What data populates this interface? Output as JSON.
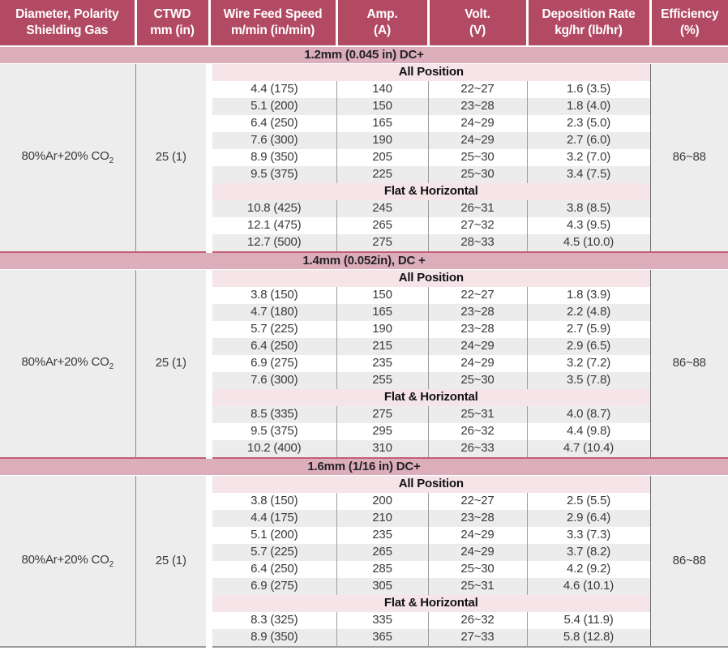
{
  "colors": {
    "header_bg": "#b34a63",
    "header_text": "#ffffff",
    "band_bg": "#dcadbb",
    "band_border": "#c25e78",
    "subheader_bg": "#f5e4e8",
    "stripe_bg": "#ececec",
    "side_bg": "#ededed",
    "text": "#3a3a3a"
  },
  "table": {
    "columns": [
      {
        "line1": "Diameter, Polarity",
        "line2": "Shielding Gas"
      },
      {
        "line1": "CTWD",
        "line2": "mm (in)"
      },
      {
        "line1": "Wire Feed Speed",
        "line2": "m/min (in/min)"
      },
      {
        "line1": "Amp.",
        "line2": "(A)"
      },
      {
        "line1": "Volt.",
        "line2": "(V)"
      },
      {
        "line1": "Deposition Rate",
        "line2": "kg/hr (lb/hr)"
      },
      {
        "line1": "Efficiency",
        "line2": "(%)"
      }
    ],
    "sections": [
      {
        "title": "1.2mm (0.045 in) DC+",
        "gas": "80%Ar+20% CO",
        "gas_sub": "2",
        "ctwd": "25 (1)",
        "efficiency": "86~88",
        "groups": [
          {
            "label": "All Position",
            "stripe_offset": 0,
            "rows": [
              [
                "4.4 (175)",
                "140",
                "22~27",
                "1.6 (3.5)"
              ],
              [
                "5.1 (200)",
                "150",
                "23~28",
                "1.8 (4.0)"
              ],
              [
                "6.4 (250)",
                "165",
                "24~29",
                "2.3 (5.0)"
              ],
              [
                "7.6 (300)",
                "190",
                "24~29",
                "2.7 (6.0)"
              ],
              [
                "8.9 (350)",
                "205",
                "25~30",
                "3.2 (7.0)"
              ],
              [
                "9.5 (375)",
                "225",
                "25~30",
                "3.4 (7.5)"
              ]
            ]
          },
          {
            "label": "Flat & Horizontal",
            "stripe_offset": 1,
            "rows": [
              [
                "10.8 (425)",
                "245",
                "26~31",
                "3.8 (8.5)"
              ],
              [
                "12.1 (475)",
                "265",
                "27~32",
                "4.3 (9.5)"
              ],
              [
                "12.7 (500)",
                "275",
                "28~33",
                "4.5 (10.0)"
              ]
            ]
          }
        ]
      },
      {
        "title": "1.4mm (0.052in), DC +",
        "gas": "80%Ar+20% CO",
        "gas_sub": "2",
        "ctwd": "25 (1)",
        "efficiency": "86~88",
        "groups": [
          {
            "label": "All Position",
            "stripe_offset": 0,
            "rows": [
              [
                "3.8 (150)",
                "150",
                "22~27",
                "1.8 (3.9)"
              ],
              [
                "4.7 (180)",
                "165",
                "23~28",
                "2.2 (4.8)"
              ],
              [
                "5.7 (225)",
                "190",
                "23~28",
                "2.7 (5.9)"
              ],
              [
                "6.4 (250)",
                "215",
                "24~29",
                "2.9 (6.5)"
              ],
              [
                "6.9 (275)",
                "235",
                "24~29",
                "3.2 (7.2)"
              ],
              [
                "7.6 (300)",
                "255",
                "25~30",
                "3.5 (7.8)"
              ]
            ]
          },
          {
            "label": "Flat & Horizontal",
            "stripe_offset": 1,
            "rows": [
              [
                "8.5 (335)",
                "275",
                "25~31",
                "4.0 (8.7)"
              ],
              [
                "9.5 (375)",
                "295",
                "26~32",
                "4.4 (9.8)"
              ],
              [
                "10.2 (400)",
                "310",
                "26~33",
                "4.7 (10.4)"
              ]
            ]
          }
        ]
      },
      {
        "title": "1.6mm (1/16 in) DC+",
        "gas": "80%Ar+20% CO",
        "gas_sub": "2",
        "ctwd": "25 (1)",
        "efficiency": "86~88",
        "groups": [
          {
            "label": "All Position",
            "stripe_offset": 0,
            "rows": [
              [
                "3.8 (150)",
                "200",
                "22~27",
                "2.5 (5.5)"
              ],
              [
                "4.4 (175)",
                "210",
                "23~28",
                "2.9 (6.4)"
              ],
              [
                "5.1 (200)",
                "235",
                "24~29",
                "3.3 (7.3)"
              ],
              [
                "5.7 (225)",
                "265",
                "24~29",
                "3.7 (8.2)"
              ],
              [
                "6.4 (250)",
                "285",
                "25~30",
                "4.2 (9.2)"
              ],
              [
                "6.9 (275)",
                "305",
                "25~31",
                "4.6 (10.1)"
              ]
            ]
          },
          {
            "label": "Flat & Horizontal",
            "stripe_offset": 0,
            "rows": [
              [
                "8.3 (325)",
                "335",
                "26~32",
                "5.4 (11.9)"
              ],
              [
                "8.9 (350)",
                "365",
                "27~33",
                "5.8 (12.8)"
              ]
            ]
          }
        ]
      }
    ]
  }
}
